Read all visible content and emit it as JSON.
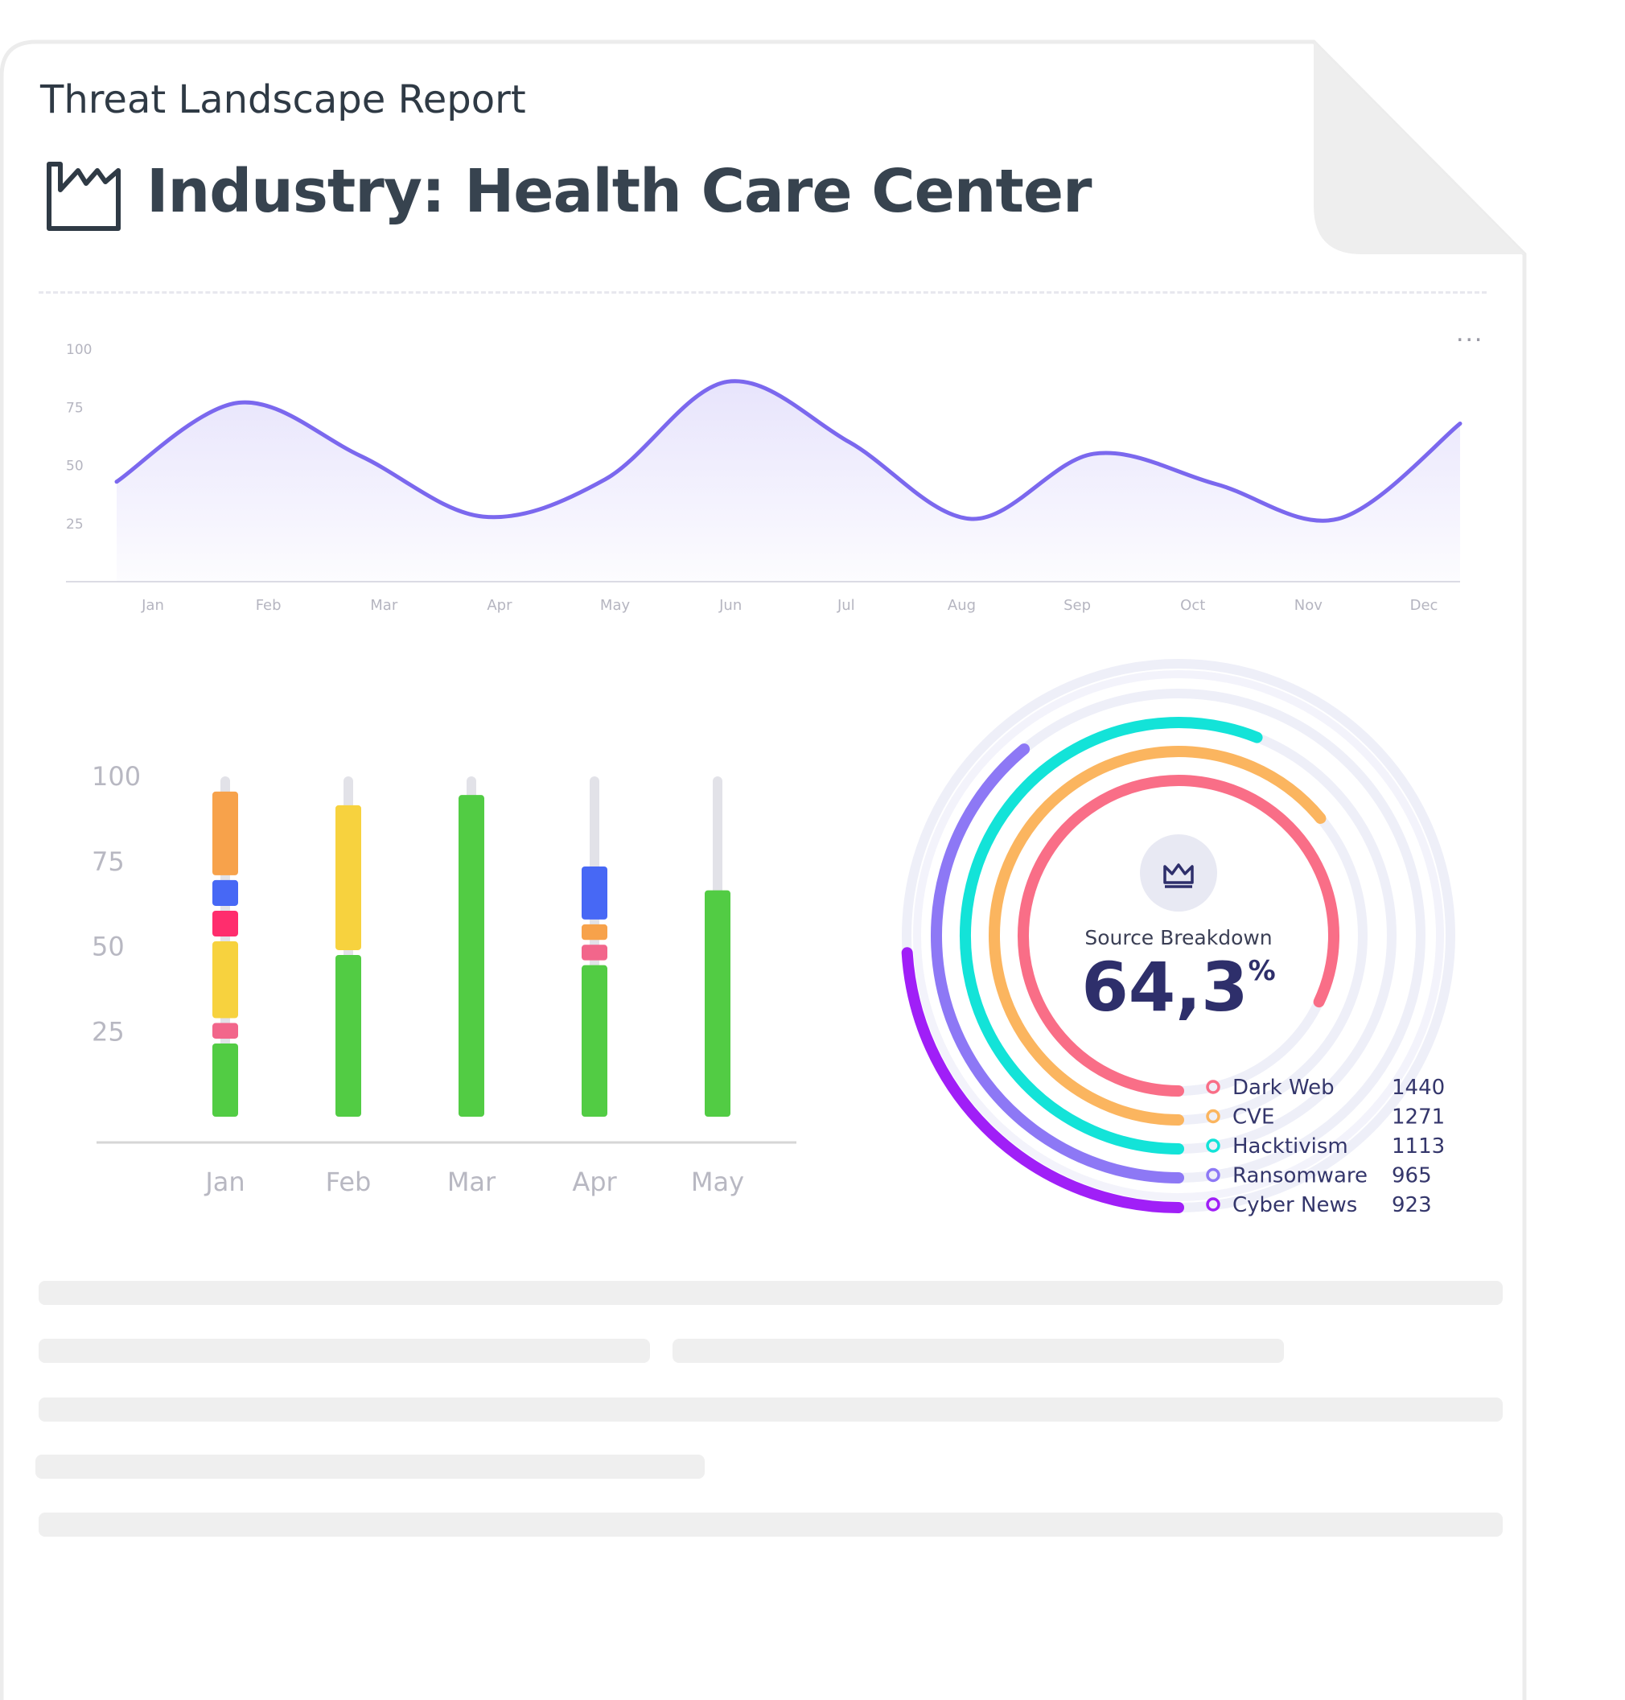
{
  "report": {
    "subtitle": "Threat Landscape Report",
    "title": "Industry: Health Care Center",
    "title_icon": "factory-icon",
    "menu_icon": "more-horizontal-icon",
    "menu_glyph": "..."
  },
  "chart_data": [
    {
      "type": "area",
      "x": [
        "Jan",
        "Feb",
        "Mar",
        "Apr",
        "May",
        "Jun",
        "Jul",
        "Aug",
        "Sep",
        "Oct",
        "Nov",
        "Dec"
      ],
      "series": [
        {
          "values": [
            43,
            77,
            54,
            28,
            44,
            86,
            60,
            27,
            55,
            42,
            27,
            68
          ]
        }
      ],
      "yticks": [
        "100",
        "75",
        "50",
        "25"
      ],
      "ylim": [
        0,
        100
      ],
      "color": "#7b68ee",
      "grid": false
    },
    {
      "type": "bar",
      "stacked": true,
      "categories": [
        "Jan",
        "Feb",
        "Mar",
        "Apr",
        "May"
      ],
      "yticks": [
        "100",
        "75",
        "50",
        "25"
      ],
      "ylim": [
        0,
        100
      ],
      "track_max": 100,
      "segments": [
        [
          {
            "value": 22,
            "color": "#52cc44"
          },
          {
            "value": 6,
            "color": "#f2668b"
          },
          {
            "value": 24,
            "color": "#f7d23e"
          },
          {
            "value": 9,
            "color": "#ff2d6d"
          },
          {
            "value": 9,
            "color": "#4768f5"
          },
          {
            "value": 26,
            "color": "#f7a24b"
          }
        ],
        [
          {
            "value": 48,
            "color": "#52cc44"
          },
          {
            "value": 44,
            "color": "#f7d23e"
          }
        ],
        [
          {
            "value": 95,
            "color": "#52cc44"
          }
        ],
        [
          {
            "value": 45,
            "color": "#52cc44"
          },
          {
            "value": 6,
            "color": "#f2668b"
          },
          {
            "value": 6,
            "color": "#f7a24b"
          },
          {
            "value": 17,
            "color": "#4768f5"
          }
        ],
        [
          {
            "value": 67,
            "color": "#52cc44"
          }
        ]
      ],
      "legend": false
    },
    {
      "type": "radial-bar",
      "center_label": "Source Breakdown",
      "center_value": "64,3",
      "center_unit": "%",
      "center_icon": "crown-icon",
      "series": [
        {
          "name": "Dark Web",
          "value": 1440,
          "fraction": 0.82,
          "color": "#f96e87"
        },
        {
          "name": "CVE",
          "value": 1271,
          "fraction": 0.64,
          "color": "#fbb55f"
        },
        {
          "name": "Hacktivism",
          "value": 1113,
          "fraction": 0.56,
          "color": "#13e3d8"
        },
        {
          "name": "Ransomware",
          "value": 965,
          "fraction": 0.39,
          "color": "#8d78f5"
        },
        {
          "name": "Cyber News",
          "value": 923,
          "fraction": 0.24,
          "color": "#a01ff7"
        }
      ],
      "legend": "bottom-right"
    }
  ]
}
